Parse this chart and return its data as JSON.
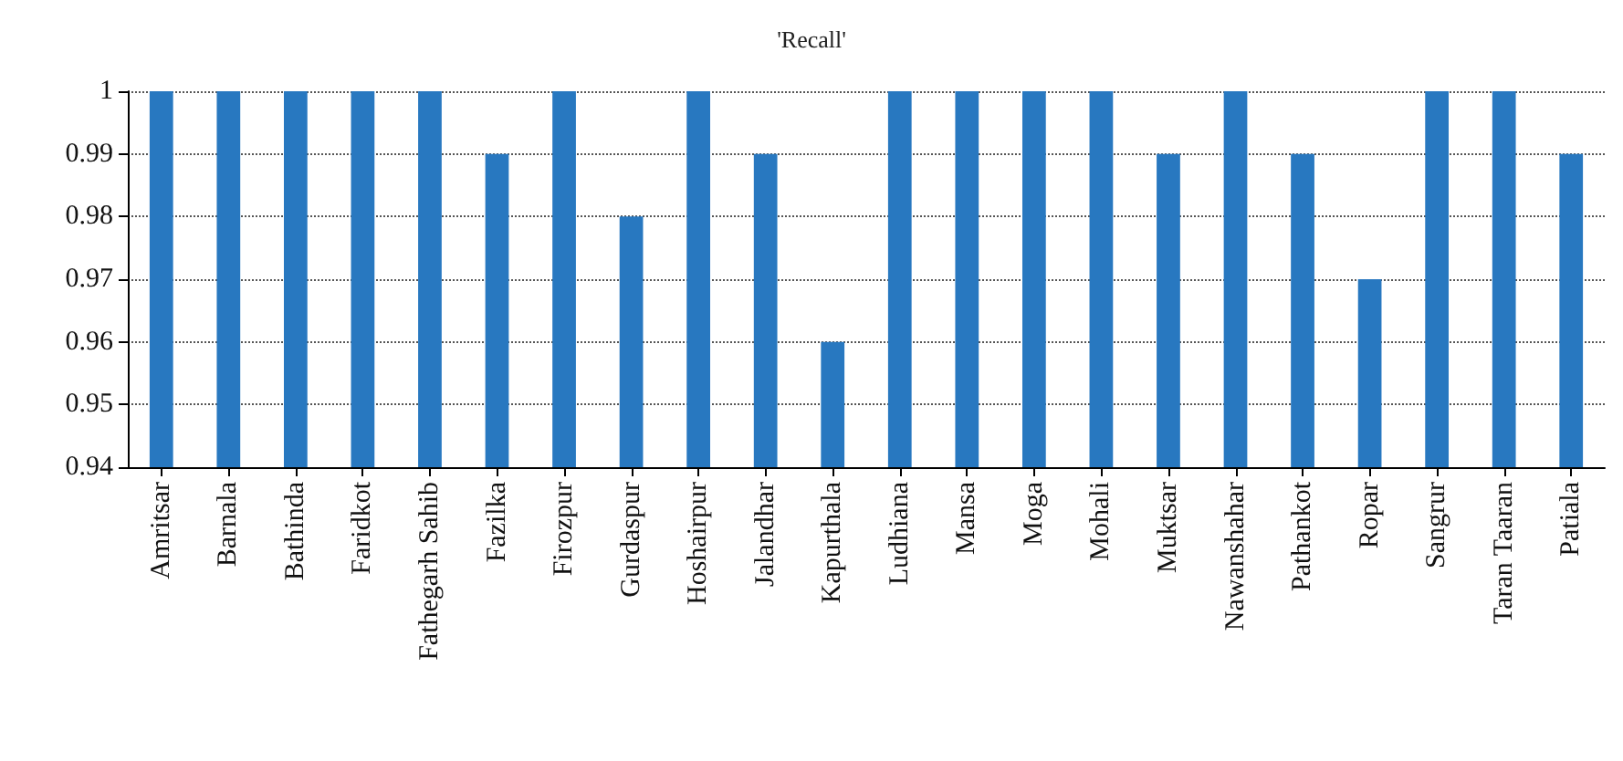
{
  "chart_data": {
    "type": "bar",
    "title": "'Recall'",
    "categories": [
      "Amritsar",
      "Barnala",
      "Bathinda",
      "Faridkot",
      "Fathegarh Sahib",
      "Fazilka",
      "Firozpur",
      "Gurdaspur",
      "Hoshairpur",
      "Jalandhar",
      "Kapurthala",
      "Ludhiana",
      "Mansa",
      "Moga",
      "Mohali",
      "Muktsar",
      "Nawanshahar",
      "Pathankot",
      "Ropar",
      "Sangrur",
      "Taran Taaran",
      "Patiala"
    ],
    "values": [
      1,
      1,
      1,
      1,
      1,
      0.99,
      1,
      0.98,
      1,
      0.99,
      0.96,
      1,
      1,
      1,
      1,
      0.99,
      1,
      0.99,
      0.97,
      1,
      1,
      0.99
    ],
    "color": "#2878c0",
    "ylim": [
      0.94,
      1
    ],
    "yticks": [
      0.94,
      0.95,
      0.96,
      0.97,
      0.98,
      0.99,
      1
    ],
    "grid": "y"
  }
}
